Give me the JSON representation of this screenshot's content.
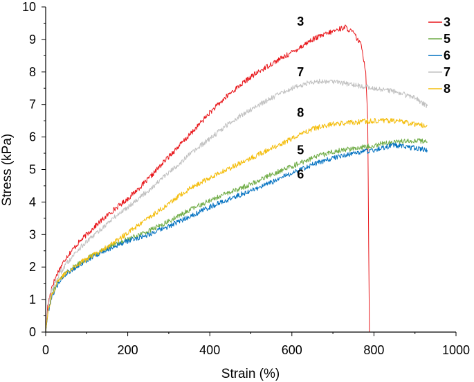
{
  "chart_data": {
    "type": "line",
    "title": "",
    "xlabel": "Strain (%)",
    "ylabel": "Stress (kPa)",
    "xlim": [
      0,
      1000
    ],
    "ylim": [
      0,
      10
    ],
    "xticks": [
      "0",
      "200",
      "400",
      "600",
      "800",
      "1000"
    ],
    "yticks": [
      "0",
      "1",
      "2",
      "3",
      "4",
      "5",
      "6",
      "7",
      "8",
      "9",
      "10"
    ],
    "grid": false,
    "legend_position": "top-right",
    "series": [
      {
        "name": "3",
        "color": "#e8171b",
        "label": {
          "text": "3",
          "x": 702,
          "y": 9.55
        },
        "points": [
          [
            0,
            0
          ],
          [
            5,
            0.8
          ],
          [
            15,
            1.4
          ],
          [
            30,
            1.85
          ],
          [
            50,
            2.3
          ],
          [
            80,
            2.75
          ],
          [
            120,
            3.25
          ],
          [
            160,
            3.7
          ],
          [
            200,
            4.1
          ],
          [
            250,
            4.7
          ],
          [
            300,
            5.4
          ],
          [
            350,
            6.05
          ],
          [
            400,
            6.75
          ],
          [
            450,
            7.35
          ],
          [
            500,
            7.85
          ],
          [
            550,
            8.25
          ],
          [
            600,
            8.6
          ],
          [
            650,
            9.0
          ],
          [
            700,
            9.25
          ],
          [
            730,
            9.38
          ],
          [
            750,
            9.2
          ],
          [
            770,
            8.8
          ],
          [
            780,
            8.0
          ],
          [
            785,
            6.5
          ],
          [
            787,
            3
          ],
          [
            789,
            0
          ]
        ]
      },
      {
        "name": "5",
        "color": "#6fac46",
        "label": {
          "text": "5",
          "x": 702,
          "y": 5.6
        },
        "points": [
          [
            0,
            0
          ],
          [
            5,
            0.6
          ],
          [
            15,
            1.15
          ],
          [
            30,
            1.55
          ],
          [
            50,
            1.85
          ],
          [
            80,
            2.1
          ],
          [
            120,
            2.4
          ],
          [
            160,
            2.65
          ],
          [
            200,
            2.85
          ],
          [
            250,
            3.1
          ],
          [
            300,
            3.4
          ],
          [
            350,
            3.75
          ],
          [
            400,
            4.05
          ],
          [
            450,
            4.3
          ],
          [
            500,
            4.55
          ],
          [
            550,
            4.85
          ],
          [
            600,
            5.1
          ],
          [
            650,
            5.35
          ],
          [
            700,
            5.55
          ],
          [
            750,
            5.65
          ],
          [
            800,
            5.75
          ],
          [
            850,
            5.85
          ],
          [
            900,
            5.9
          ],
          [
            930,
            5.85
          ]
        ]
      },
      {
        "name": "6",
        "color": "#0070c0",
        "label": {
          "text": "6",
          "x": 702,
          "y": 4.85
        },
        "points": [
          [
            0,
            0
          ],
          [
            5,
            0.55
          ],
          [
            15,
            1.1
          ],
          [
            30,
            1.5
          ],
          [
            50,
            1.8
          ],
          [
            80,
            2.05
          ],
          [
            120,
            2.35
          ],
          [
            160,
            2.6
          ],
          [
            200,
            2.8
          ],
          [
            250,
            3.0
          ],
          [
            300,
            3.25
          ],
          [
            350,
            3.55
          ],
          [
            400,
            3.85
          ],
          [
            450,
            4.1
          ],
          [
            500,
            4.35
          ],
          [
            550,
            4.6
          ],
          [
            600,
            4.9
          ],
          [
            650,
            5.15
          ],
          [
            700,
            5.35
          ],
          [
            750,
            5.5
          ],
          [
            800,
            5.6
          ],
          [
            850,
            5.75
          ],
          [
            900,
            5.65
          ],
          [
            930,
            5.6
          ]
        ]
      },
      {
        "name": "7",
        "color": "#c0c0c0",
        "label": {
          "text": "7",
          "x": 702,
          "y": 8.0
        },
        "points": [
          [
            0,
            0
          ],
          [
            5,
            0.7
          ],
          [
            15,
            1.3
          ],
          [
            30,
            1.7
          ],
          [
            50,
            2.1
          ],
          [
            80,
            2.55
          ],
          [
            120,
            3.0
          ],
          [
            160,
            3.45
          ],
          [
            200,
            3.85
          ],
          [
            250,
            4.35
          ],
          [
            300,
            4.9
          ],
          [
            350,
            5.45
          ],
          [
            400,
            5.95
          ],
          [
            450,
            6.45
          ],
          [
            500,
            6.85
          ],
          [
            550,
            7.2
          ],
          [
            600,
            7.5
          ],
          [
            650,
            7.7
          ],
          [
            700,
            7.72
          ],
          [
            750,
            7.6
          ],
          [
            800,
            7.5
          ],
          [
            850,
            7.4
          ],
          [
            900,
            7.2
          ],
          [
            930,
            6.95
          ]
        ]
      },
      {
        "name": "8",
        "color": "#f4bd0c",
        "label": {
          "text": "8",
          "x": 702,
          "y": 6.75
        },
        "points": [
          [
            0,
            0
          ],
          [
            5,
            0.6
          ],
          [
            15,
            1.15
          ],
          [
            30,
            1.55
          ],
          [
            50,
            1.85
          ],
          [
            80,
            2.1
          ],
          [
            120,
            2.4
          ],
          [
            160,
            2.7
          ],
          [
            200,
            3.05
          ],
          [
            250,
            3.5
          ],
          [
            300,
            3.95
          ],
          [
            350,
            4.4
          ],
          [
            400,
            4.75
          ],
          [
            450,
            5.05
          ],
          [
            500,
            5.35
          ],
          [
            550,
            5.65
          ],
          [
            600,
            5.95
          ],
          [
            650,
            6.25
          ],
          [
            700,
            6.4
          ],
          [
            750,
            6.45
          ],
          [
            800,
            6.5
          ],
          [
            850,
            6.5
          ],
          [
            900,
            6.4
          ],
          [
            930,
            6.35
          ]
        ]
      }
    ]
  }
}
